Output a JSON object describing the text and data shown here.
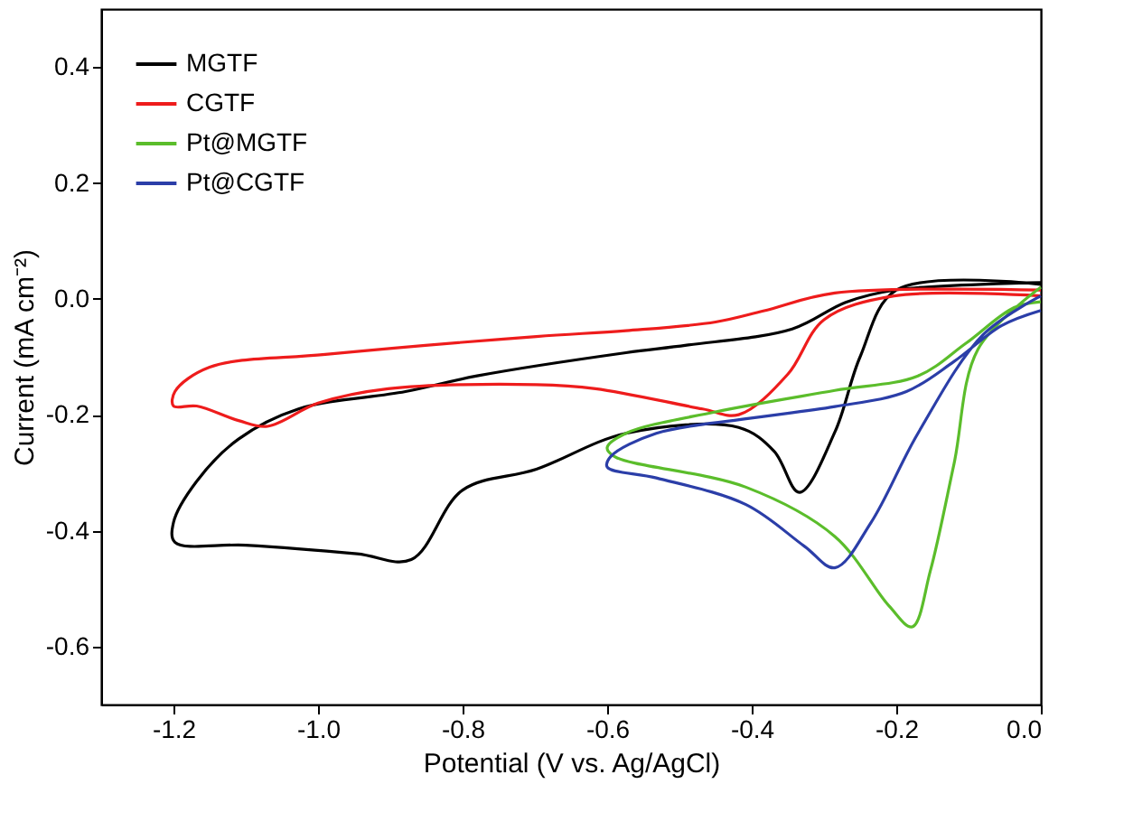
{
  "chart_data": {
    "type": "line",
    "xlabel": "Potential (V vs. Ag/AgCl)",
    "ylabel": "Current (mA cm⁻²)",
    "xlim": [
      -1.3,
      0.0
    ],
    "xticks": [
      {
        "value": -1.2,
        "label": "-1.2"
      },
      {
        "value": -1.0,
        "label": "-1.0"
      },
      {
        "value": -0.8,
        "label": "-0.8"
      },
      {
        "value": -0.6,
        "label": "-0.6"
      },
      {
        "value": -0.4,
        "label": "-0.4"
      },
      {
        "value": -0.2,
        "label": "-0.2"
      },
      {
        "value": 0.0,
        "label": "0.0"
      }
    ],
    "ylim": [
      -0.7,
      0.5
    ],
    "yticks": [
      {
        "value": -0.6,
        "label": "-0.6"
      },
      {
        "value": -0.4,
        "label": "-0.4"
      },
      {
        "value": -0.2,
        "label": "-0.2"
      },
      {
        "value": 0.0,
        "label": "0.0"
      },
      {
        "value": 0.2,
        "label": "0.2"
      },
      {
        "value": 0.4,
        "label": "0.4"
      }
    ],
    "grid": false,
    "legend": "top left",
    "marker": "none",
    "line_style": "solid",
    "series": [
      {
        "name": "MGTF",
        "color": "#000000",
        "x": [
          0,
          -0.2,
          -0.25,
          -0.285,
          -0.334,
          -0.369,
          -0.418,
          -0.574,
          -0.698,
          -0.8,
          -0.871,
          -0.946,
          -1.1,
          -1.198,
          -1.2,
          -1.168,
          -1.11,
          -1.027,
          -0.879,
          -0.78,
          -0.574,
          -0.49,
          -0.344,
          -0.27,
          -0.203,
          0
        ],
        "values": [
          0.025,
          0.015,
          -0.1,
          -0.23,
          -0.334,
          -0.263,
          -0.222,
          -0.232,
          -0.294,
          -0.33,
          -0.45,
          -0.44,
          -0.425,
          -0.42,
          -0.386,
          -0.315,
          -0.242,
          -0.19,
          -0.16,
          -0.133,
          -0.093,
          -0.08,
          -0.052,
          -0.006,
          0.015,
          0.028
        ]
      },
      {
        "name": "CGTF",
        "color": "#ee1c1c",
        "x": [
          0,
          -0.203,
          -0.3,
          -0.35,
          -0.418,
          -0.468,
          -0.616,
          -0.698,
          -0.903,
          -1.0,
          -1.07,
          -1.11,
          -1.168,
          -1.2,
          -1.198,
          -1.15,
          -0.99,
          -0.698,
          -0.574,
          -0.45,
          -0.384,
          -0.285,
          0
        ],
        "values": [
          0.005,
          0.005,
          -0.036,
          -0.13,
          -0.2,
          -0.19,
          -0.155,
          -0.148,
          -0.155,
          -0.18,
          -0.22,
          -0.21,
          -0.185,
          -0.185,
          -0.16,
          -0.118,
          -0.096,
          -0.065,
          -0.055,
          -0.04,
          -0.021,
          0.01,
          0.015
        ]
      },
      {
        "name": "Pt@MGTF",
        "color": "#5bbd2b",
        "x": [
          0,
          -0.087,
          -0.12,
          -0.153,
          -0.178,
          -0.21,
          -0.285,
          -0.408,
          -0.59,
          -0.6,
          -0.574,
          -0.45,
          -0.285,
          -0.17,
          -0.104,
          -0.037,
          0
        ],
        "values": [
          0.02,
          -0.087,
          -0.284,
          -0.47,
          -0.566,
          -0.53,
          -0.41,
          -0.325,
          -0.272,
          -0.257,
          -0.232,
          -0.195,
          -0.158,
          -0.133,
          -0.077,
          -0.015,
          -0.005
        ]
      },
      {
        "name": "Pt@CGTF",
        "color": "#2b3ea8",
        "x": [
          0,
          -0.08,
          -0.17,
          -0.235,
          -0.285,
          -0.327,
          -0.408,
          -0.532,
          -0.6,
          -0.595,
          -0.532,
          -0.408,
          -0.285,
          -0.186,
          -0.12,
          -0.054,
          0
        ],
        "values": [
          0.005,
          -0.062,
          -0.232,
          -0.386,
          -0.464,
          -0.427,
          -0.355,
          -0.309,
          -0.29,
          -0.272,
          -0.232,
          -0.207,
          -0.186,
          -0.16,
          -0.108,
          -0.046,
          -0.02
        ]
      }
    ]
  }
}
